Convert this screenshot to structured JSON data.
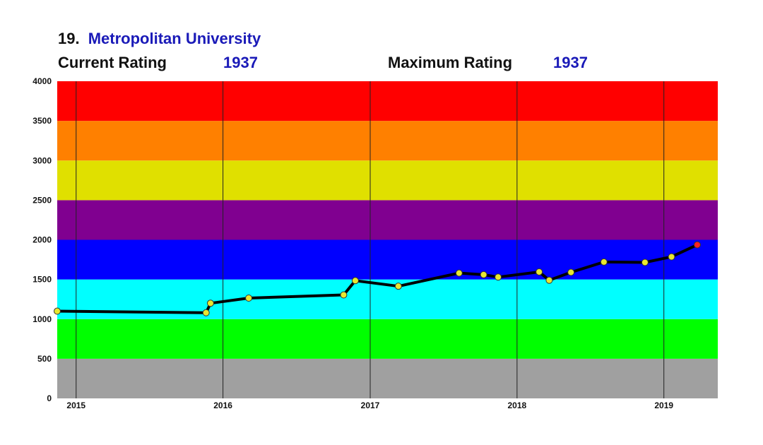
{
  "header": {
    "rank": "19.",
    "name": "Metropolitan University",
    "current_label": "Current Rating",
    "current_value": "1937",
    "max_label": "Maximum Rating",
    "max_value": "1937"
  },
  "chart_data": {
    "type": "line",
    "title": "",
    "xlabel": "",
    "ylabel": "",
    "ylim": [
      0,
      4000
    ],
    "xlim": [
      "2014-11-15",
      "2019-05-15"
    ],
    "yticks": [
      "0",
      "500",
      "1000",
      "1500",
      "2000",
      "2500",
      "3000",
      "3500",
      "4000"
    ],
    "xticks": [
      {
        "label": "2015",
        "date": "2015-01-01"
      },
      {
        "label": "2016",
        "date": "2016-01-01"
      },
      {
        "label": "2017",
        "date": "2017-01-01"
      },
      {
        "label": "2018",
        "date": "2018-01-01"
      },
      {
        "label": "2019",
        "date": "2019-01-01"
      }
    ],
    "grid": "vertical at year boundaries",
    "bands": [
      {
        "from": 0,
        "to": 500,
        "color": "#a0a0a0"
      },
      {
        "from": 500,
        "to": 1000,
        "color": "#00ff00"
      },
      {
        "from": 1000,
        "to": 1500,
        "color": "#00ffff"
      },
      {
        "from": 1500,
        "to": 2000,
        "color": "#0000ff"
      },
      {
        "from": 2000,
        "to": 2500,
        "color": "#800090"
      },
      {
        "from": 2500,
        "to": 3000,
        "color": "#e0e000"
      },
      {
        "from": 3000,
        "to": 3500,
        "color": "#ff8000"
      },
      {
        "from": 3500,
        "to": 4000,
        "color": "#ff0000"
      }
    ],
    "line_color": "#000000",
    "point_color": "#e8e830",
    "last_point_color": "#ff2020",
    "series": [
      {
        "points": [
          {
            "x": "2014-11-15",
            "y": 1100
          },
          {
            "x": "2015-11-20",
            "y": 1080
          },
          {
            "x": "2015-12-01",
            "y": 1200
          },
          {
            "x": "2016-03-05",
            "y": 1265
          },
          {
            "x": "2016-10-27",
            "y": 1305
          },
          {
            "x": "2016-11-25",
            "y": 1485
          },
          {
            "x": "2017-03-12",
            "y": 1415
          },
          {
            "x": "2017-08-10",
            "y": 1580
          },
          {
            "x": "2017-10-10",
            "y": 1560
          },
          {
            "x": "2017-11-15",
            "y": 1530
          },
          {
            "x": "2018-02-25",
            "y": 1595
          },
          {
            "x": "2018-03-22",
            "y": 1490
          },
          {
            "x": "2018-05-15",
            "y": 1590
          },
          {
            "x": "2018-08-05",
            "y": 1720
          },
          {
            "x": "2018-11-15",
            "y": 1715
          },
          {
            "x": "2019-01-20",
            "y": 1785
          },
          {
            "x": "2019-03-25",
            "y": 1937
          }
        ]
      }
    ]
  }
}
